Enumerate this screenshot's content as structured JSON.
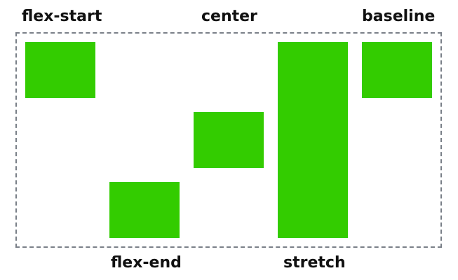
{
  "labels": {
    "flex_start": "flex-start",
    "center": "center",
    "baseline": "baseline",
    "flex_end": "flex-end",
    "stretch": "stretch"
  },
  "colors": {
    "box_fill": "#33cc00",
    "container_border": "#7a8088",
    "label_text": "#111111"
  },
  "items": [
    {
      "alignment": "flex-start"
    },
    {
      "alignment": "flex-end"
    },
    {
      "alignment": "center"
    },
    {
      "alignment": "stretch"
    },
    {
      "alignment": "baseline"
    }
  ]
}
